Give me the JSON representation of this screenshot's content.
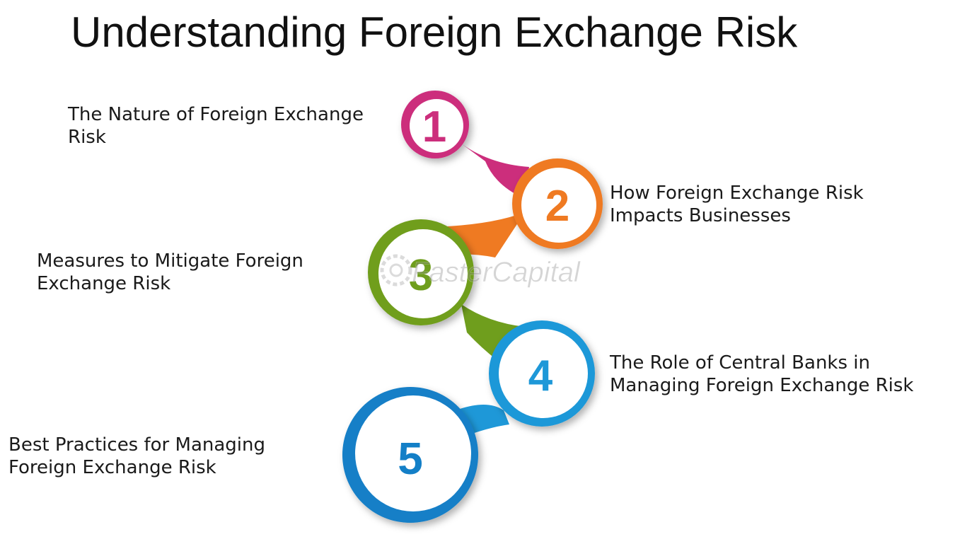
{
  "title": "Understanding Foreign Exchange Risk",
  "watermark": "FasterCapital",
  "steps": [
    {
      "number": "1",
      "line1": "The Nature of Foreign Exchange",
      "line2": "Risk",
      "color": "#cc2e7c"
    },
    {
      "number": "2",
      "line1": "How Foreign Exchange Risk",
      "line2": "Impacts Businesses",
      "color": "#ef7a22"
    },
    {
      "number": "3",
      "line1": "Measures to Mitigate Foreign",
      "line2": "Exchange Risk",
      "color": "#6f9e1d"
    },
    {
      "number": "4",
      "line1": "The Role of Central Banks in",
      "line2": "Managing Foreign Exchange Risk",
      "color": "#1e98d8"
    },
    {
      "number": "5",
      "line1": "Best Practices for Managing",
      "line2": "Foreign Exchange Risk",
      "color": "#137fc7"
    }
  ]
}
